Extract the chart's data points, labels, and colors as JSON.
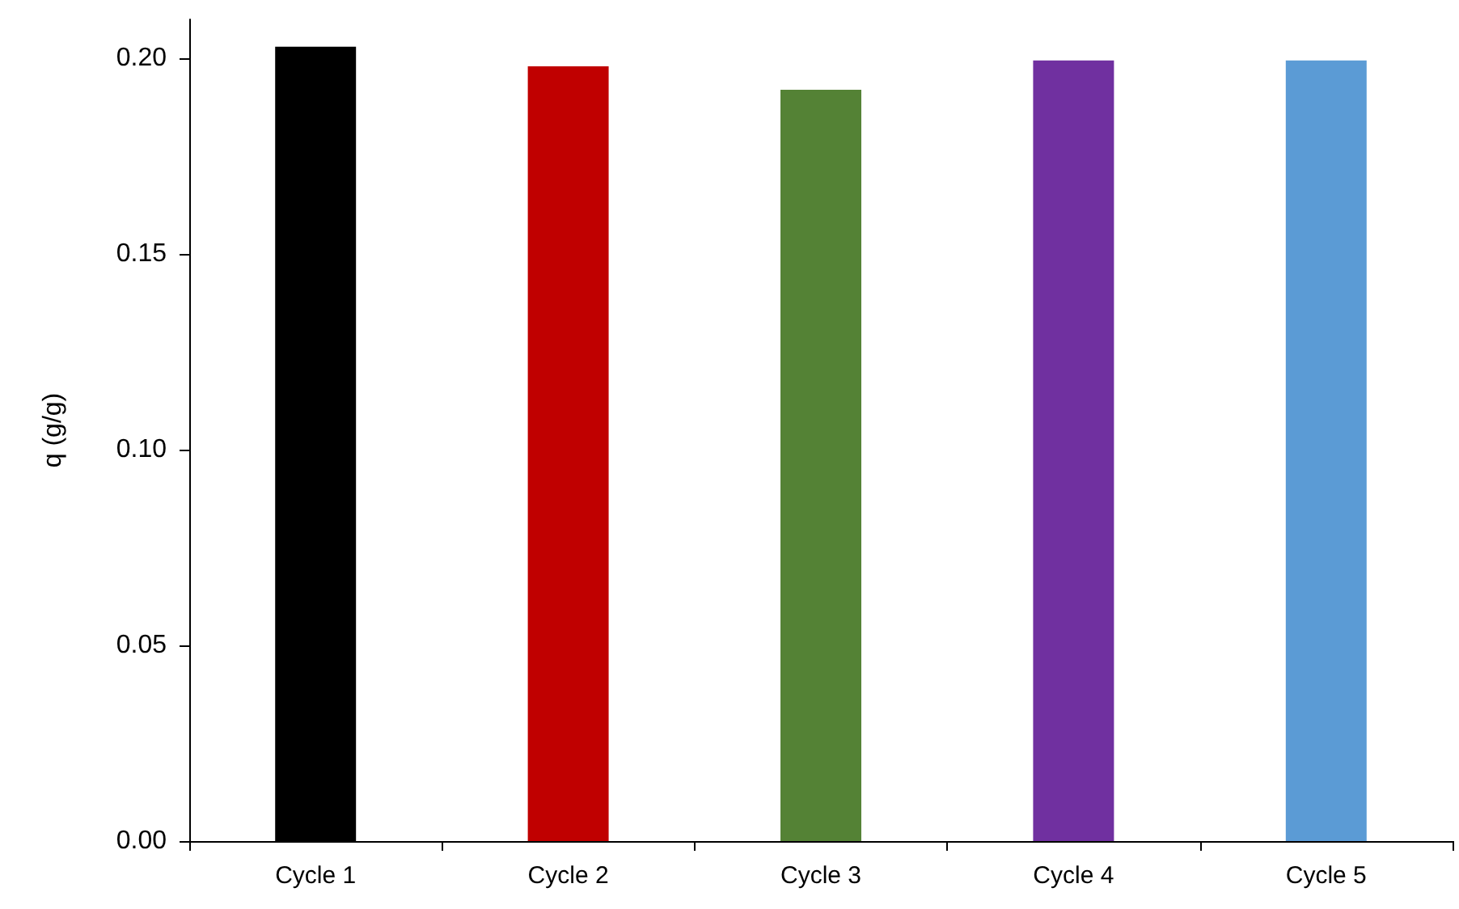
{
  "chart_data": {
    "type": "bar",
    "ylabel": "q (g/g)",
    "categories": [
      "Cycle 1",
      "Cycle 2",
      "Cycle 3",
      "Cycle 4",
      "Cycle 5"
    ],
    "values": [
      0.203,
      0.198,
      0.192,
      0.1995,
      0.1995
    ],
    "colors": [
      "#000000",
      "#c00000",
      "#548235",
      "#7030a0",
      "#5b9bd5"
    ],
    "ylim": [
      0,
      0.21
    ],
    "yticks": [
      {
        "value": 0,
        "label": "0.00"
      },
      {
        "value": 0.05,
        "label": "0.05"
      },
      {
        "value": 0.1,
        "label": "0.10"
      },
      {
        "value": 0.15,
        "label": "0.15"
      },
      {
        "value": 0.2,
        "label": "0.20"
      }
    ],
    "grid": false
  }
}
